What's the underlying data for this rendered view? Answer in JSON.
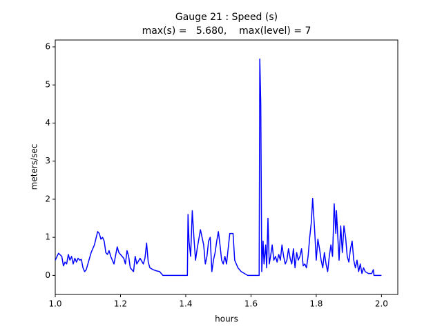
{
  "chart_data": {
    "type": "line",
    "title": "Gauge 21 : Speed (s)",
    "subtitle": "max(s) =   5.680,    max(level) = 7",
    "x_label": "hours",
    "y_label": "meters/sec",
    "xlim": [
      1.0,
      2.05
    ],
    "ylim": [
      -0.5,
      6.18
    ],
    "xticks": [
      {
        "value": 1.0,
        "label": "1.0"
      },
      1.2,
      1.4,
      1.6,
      1.8,
      {
        "value": 2.0,
        "label": "2.0"
      }
    ],
    "yticks": [
      0,
      1,
      2,
      3,
      4,
      5,
      6
    ],
    "grid": false,
    "series": [
      {
        "name": "s",
        "color": "#0000ff",
        "x": [
          1.0,
          1.01,
          1.02,
          1.025,
          1.03,
          1.035,
          1.04,
          1.045,
          1.05,
          1.055,
          1.06,
          1.065,
          1.07,
          1.075,
          1.08,
          1.085,
          1.09,
          1.095,
          1.1,
          1.11,
          1.12,
          1.13,
          1.135,
          1.14,
          1.145,
          1.15,
          1.155,
          1.16,
          1.165,
          1.17,
          1.18,
          1.19,
          1.195,
          1.2,
          1.21,
          1.215,
          1.22,
          1.225,
          1.23,
          1.24,
          1.245,
          1.25,
          1.26,
          1.27,
          1.275,
          1.28,
          1.285,
          1.29,
          1.3,
          1.31,
          1.32,
          1.33,
          1.405,
          1.407,
          1.41,
          1.415,
          1.42,
          1.425,
          1.43,
          1.435,
          1.445,
          1.455,
          1.46,
          1.465,
          1.47,
          1.475,
          1.48,
          1.485,
          1.49,
          1.495,
          1.5,
          1.505,
          1.51,
          1.515,
          1.52,
          1.525,
          1.53,
          1.535,
          1.545,
          1.55,
          1.56,
          1.57,
          1.58,
          1.59,
          1.625,
          1.627,
          1.63,
          1.633,
          1.637,
          1.64,
          1.645,
          1.648,
          1.652,
          1.656,
          1.66,
          1.665,
          1.67,
          1.675,
          1.68,
          1.685,
          1.69,
          1.695,
          1.7,
          1.705,
          1.71,
          1.715,
          1.72,
          1.725,
          1.73,
          1.735,
          1.74,
          1.745,
          1.75,
          1.755,
          1.76,
          1.765,
          1.77,
          1.775,
          1.78,
          1.785,
          1.789,
          1.795,
          1.8,
          1.805,
          1.81,
          1.815,
          1.82,
          1.825,
          1.83,
          1.835,
          1.84,
          1.845,
          1.85,
          1.855,
          1.86,
          1.862,
          1.868,
          1.87,
          1.875,
          1.88,
          1.885,
          1.89,
          1.895,
          1.9,
          1.905,
          1.91,
          1.915,
          1.92,
          1.925,
          1.93,
          1.935,
          1.94,
          1.945,
          1.95,
          1.96,
          1.97,
          1.975,
          1.977,
          2.0
        ],
        "values": [
          0.4,
          0.58,
          0.5,
          0.25,
          0.35,
          0.3,
          0.55,
          0.4,
          0.5,
          0.3,
          0.45,
          0.35,
          0.45,
          0.4,
          0.42,
          0.2,
          0.1,
          0.15,
          0.3,
          0.6,
          0.8,
          1.15,
          1.1,
          0.95,
          1.0,
          0.9,
          0.6,
          0.55,
          0.65,
          0.5,
          0.3,
          0.75,
          0.6,
          0.55,
          0.45,
          0.3,
          0.65,
          0.5,
          0.2,
          0.1,
          0.5,
          0.3,
          0.45,
          0.3,
          0.45,
          0.85,
          0.35,
          0.2,
          0.15,
          0.12,
          0.1,
          0.0,
          0.0,
          1.6,
          0.9,
          0.5,
          1.7,
          1.0,
          0.4,
          0.7,
          1.2,
          0.8,
          0.3,
          0.5,
          0.9,
          1.0,
          0.1,
          0.4,
          0.6,
          0.9,
          1.15,
          0.8,
          0.4,
          0.3,
          0.5,
          0.3,
          0.7,
          1.1,
          1.1,
          0.4,
          0.2,
          0.1,
          0.05,
          0.0,
          0.0,
          5.68,
          4.5,
          0.1,
          0.9,
          0.3,
          0.8,
          0.2,
          1.5,
          0.3,
          0.5,
          0.8,
          0.4,
          0.5,
          0.35,
          0.55,
          0.4,
          0.8,
          0.5,
          0.3,
          0.4,
          0.7,
          0.45,
          0.3,
          0.7,
          0.2,
          0.6,
          0.4,
          0.5,
          0.7,
          0.25,
          0.3,
          0.2,
          0.5,
          1.0,
          1.4,
          2.02,
          1.2,
          0.4,
          0.95,
          0.7,
          0.4,
          0.2,
          0.6,
          0.3,
          0.1,
          0.5,
          0.8,
          0.5,
          1.88,
          1.1,
          1.7,
          0.7,
          0.4,
          1.3,
          0.6,
          1.3,
          1.0,
          0.5,
          0.35,
          0.7,
          0.9,
          0.4,
          0.2,
          0.4,
          0.1,
          0.3,
          0.05,
          0.2,
          0.1,
          0.05,
          0.05,
          0.15,
          0.0,
          0.0
        ]
      }
    ]
  }
}
